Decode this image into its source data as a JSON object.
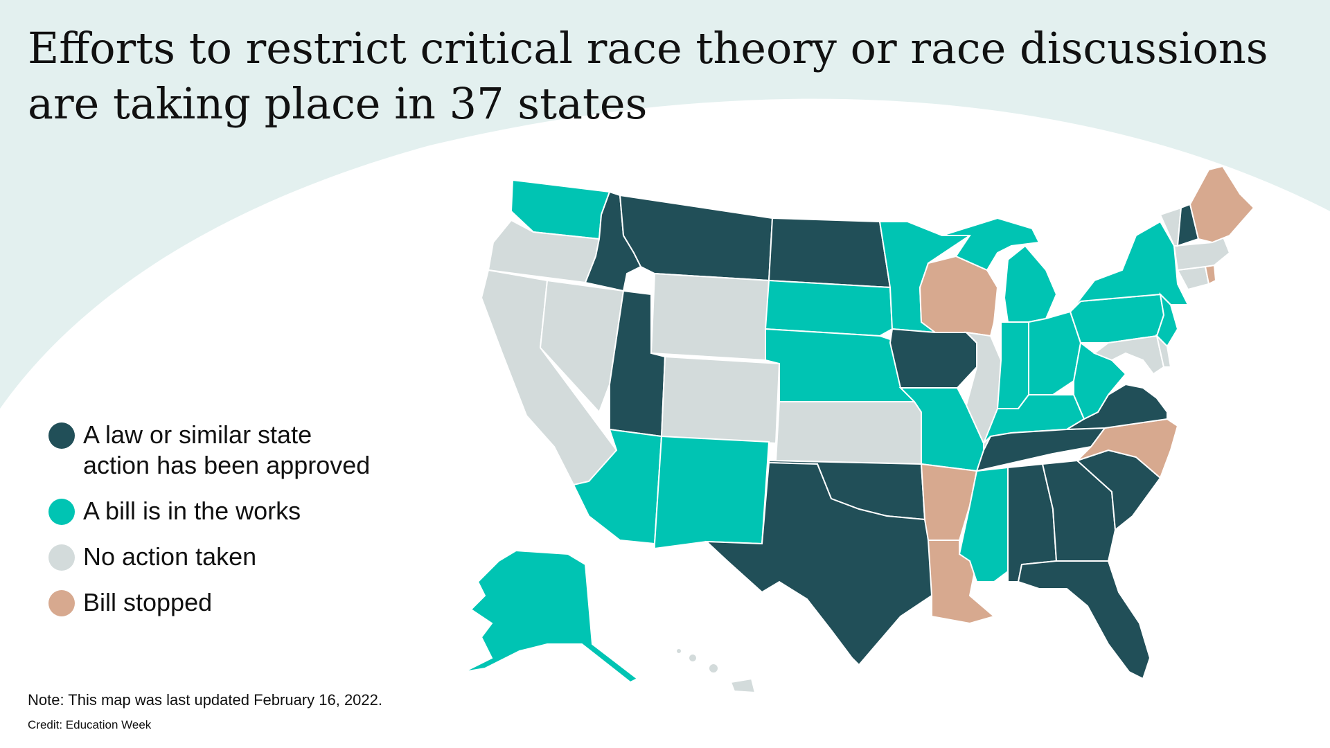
{
  "title_lines": [
    "Efforts to restrict critical race theory or race discussions",
    "are taking place in 37 states"
  ],
  "colors": {
    "background_arc": "#e3f0ef",
    "approved": "#214f58",
    "in_works": "#00c4b3",
    "no_action": "#d3dbdb",
    "stopped": "#d7a98f"
  },
  "legend": [
    {
      "key": "approved",
      "lines": [
        "A law or similar state",
        "action has been approved"
      ]
    },
    {
      "key": "in_works",
      "lines": [
        "A bill is in the works"
      ]
    },
    {
      "key": "no_action",
      "lines": [
        "No action taken"
      ]
    },
    {
      "key": "stopped",
      "lines": [
        "Bill stopped"
      ]
    }
  ],
  "states": {
    "approved": [
      "ID",
      "MT",
      "ND",
      "UT",
      "TX",
      "OK",
      "IA",
      "TN",
      "VA",
      "AL",
      "GA",
      "SC",
      "FL",
      "NH"
    ],
    "in_works": [
      "WA",
      "SD",
      "NE",
      "MN",
      "MO",
      "AZ",
      "NM",
      "MS",
      "MI",
      "IN",
      "OH",
      "KY",
      "WV",
      "PA",
      "NY",
      "NJ",
      "AK"
    ],
    "no_action": [
      "OR",
      "CA",
      "NV",
      "WY",
      "CO",
      "KS",
      "IL",
      "VT",
      "MA",
      "CT",
      "MD",
      "DE",
      "HI"
    ],
    "stopped": [
      "WI",
      "AR",
      "LA",
      "NC",
      "ME",
      "RI"
    ]
  },
  "footer": {
    "note": "Note: This map was last updated February 16, 2022.",
    "credit": "Credit: Education Week"
  }
}
